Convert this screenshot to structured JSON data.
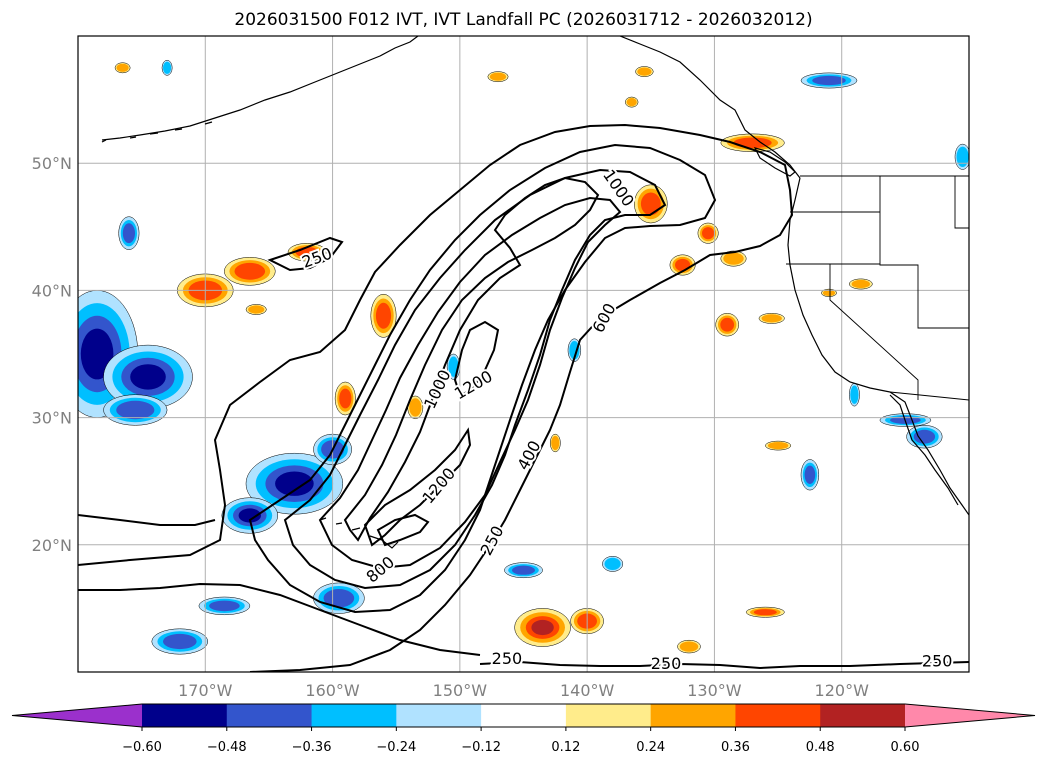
{
  "title": "2026031500 F012 IVT, IVT Landfall PC (2026031712 - 2026032012)",
  "map": {
    "projection": "equirectangular",
    "lon_range": [
      -180,
      -110
    ],
    "lat_range": [
      10,
      60
    ],
    "lat_ticks": [
      {
        "value": 20,
        "label": "20°N"
      },
      {
        "value": 30,
        "label": "30°N"
      },
      {
        "value": 40,
        "label": "40°N"
      },
      {
        "value": 50,
        "label": "50°N"
      }
    ],
    "lon_ticks": [
      {
        "value": -170,
        "label": "170°W"
      },
      {
        "value": -160,
        "label": "160°W"
      },
      {
        "value": -150,
        "label": "150°W"
      },
      {
        "value": -140,
        "label": "140°W"
      },
      {
        "value": -130,
        "label": "130°W"
      },
      {
        "value": -120,
        "label": "120°W"
      }
    ],
    "grid": true
  },
  "ivt_contours": {
    "levels": [
      250,
      400,
      600,
      800,
      1000,
      1200
    ],
    "labels": [
      {
        "text": "250",
        "lon": -161.2,
        "lat": 42.5,
        "angle": -20
      },
      {
        "text": "1000",
        "lon": -137.6,
        "lat": 48.0,
        "angle": 55
      },
      {
        "text": "600",
        "lon": -138.6,
        "lat": 37.8,
        "angle": -62
      },
      {
        "text": "1200",
        "lon": -148.9,
        "lat": 32.5,
        "angle": -30
      },
      {
        "text": "1000",
        "lon": -151.7,
        "lat": 32.2,
        "angle": -65
      },
      {
        "text": "400",
        "lon": -144.5,
        "lat": 27.0,
        "angle": -62
      },
      {
        "text": "1200",
        "lon": -151.6,
        "lat": 24.6,
        "angle": -50
      },
      {
        "text": "250",
        "lon": -147.4,
        "lat": 20.3,
        "angle": -62
      },
      {
        "text": "800",
        "lon": -156.2,
        "lat": 18.0,
        "angle": -40
      },
      {
        "text": "250",
        "lon": -146.3,
        "lat": 11.0,
        "angle": 0
      },
      {
        "text": "250",
        "lon": -133.8,
        "lat": 10.6,
        "angle": 0
      },
      {
        "text": "250",
        "lon": -112.5,
        "lat": 10.8,
        "angle": 0
      }
    ]
  },
  "pc_shading": {
    "negative_blobs": [
      {
        "lon": -178.5,
        "lat": 35.0,
        "rx": 3.2,
        "ry": 5.0
      },
      {
        "lon": -174.5,
        "lat": 33.2,
        "rx": 3.5,
        "ry": 2.5
      },
      {
        "lon": -175.5,
        "lat": 30.6,
        "rx": 2.5,
        "ry": 1.2
      },
      {
        "lon": -163.0,
        "lat": 24.8,
        "rx": 3.8,
        "ry": 2.4
      },
      {
        "lon": -166.5,
        "lat": 22.3,
        "rx": 2.2,
        "ry": 1.4
      },
      {
        "lon": -160.0,
        "lat": 27.5,
        "rx": 1.5,
        "ry": 1.2
      },
      {
        "lon": -168.5,
        "lat": 15.2,
        "rx": 2.0,
        "ry": 0.7
      },
      {
        "lon": -172.0,
        "lat": 12.4,
        "rx": 2.2,
        "ry": 1.0
      },
      {
        "lon": -159.5,
        "lat": 15.8,
        "rx": 2.0,
        "ry": 1.2
      },
      {
        "lon": -121.0,
        "lat": 56.5,
        "rx": 2.2,
        "ry": 0.6
      },
      {
        "lon": -176.0,
        "lat": 44.5,
        "rx": 0.8,
        "ry": 1.3
      },
      {
        "lon": -122.5,
        "lat": 25.5,
        "rx": 0.7,
        "ry": 1.2
      },
      {
        "lon": -113.5,
        "lat": 28.5,
        "rx": 1.4,
        "ry": 0.9
      },
      {
        "lon": -115.0,
        "lat": 29.8,
        "rx": 2.0,
        "ry": 0.5
      },
      {
        "lon": -150.5,
        "lat": 34.0,
        "rx": 0.5,
        "ry": 1.0
      },
      {
        "lon": -141.0,
        "lat": 35.3,
        "rx": 0.5,
        "ry": 0.9
      },
      {
        "lon": -145.0,
        "lat": 18.0,
        "rx": 1.5,
        "ry": 0.6
      },
      {
        "lon": -138.0,
        "lat": 18.5,
        "rx": 0.8,
        "ry": 0.6
      },
      {
        "lon": -110.5,
        "lat": 50.5,
        "rx": 0.6,
        "ry": 1.0
      },
      {
        "lon": -173.0,
        "lat": 57.5,
        "rx": 0.4,
        "ry": 0.6
      },
      {
        "lon": -119.0,
        "lat": 31.8,
        "rx": 0.4,
        "ry": 0.9
      }
    ],
    "positive_blobs": [
      {
        "lon": -170.0,
        "lat": 40.0,
        "rx": 2.2,
        "ry": 1.3
      },
      {
        "lon": -166.5,
        "lat": 41.5,
        "rx": 2.0,
        "ry": 1.1
      },
      {
        "lon": -162.0,
        "lat": 43.0,
        "rx": 1.5,
        "ry": 0.7
      },
      {
        "lon": -156.0,
        "lat": 38.0,
        "rx": 1.0,
        "ry": 1.7
      },
      {
        "lon": -159.0,
        "lat": 31.5,
        "rx": 0.8,
        "ry": 1.3
      },
      {
        "lon": -135.0,
        "lat": 46.8,
        "rx": 1.3,
        "ry": 1.5
      },
      {
        "lon": -132.5,
        "lat": 42.0,
        "rx": 1.0,
        "ry": 0.8
      },
      {
        "lon": -130.5,
        "lat": 44.5,
        "rx": 0.8,
        "ry": 0.8
      },
      {
        "lon": -128.5,
        "lat": 42.5,
        "rx": 1.0,
        "ry": 0.6
      },
      {
        "lon": -127.0,
        "lat": 51.6,
        "rx": 2.5,
        "ry": 0.7
      },
      {
        "lon": -143.5,
        "lat": 13.5,
        "rx": 2.2,
        "ry": 1.5
      },
      {
        "lon": -140.0,
        "lat": 14.0,
        "rx": 1.3,
        "ry": 1.0
      },
      {
        "lon": -129.0,
        "lat": 37.3,
        "rx": 0.9,
        "ry": 0.9
      },
      {
        "lon": -125.5,
        "lat": 37.8,
        "rx": 1.0,
        "ry": 0.4
      },
      {
        "lon": -126.0,
        "lat": 14.7,
        "rx": 1.5,
        "ry": 0.4
      },
      {
        "lon": -132.0,
        "lat": 12.0,
        "rx": 0.9,
        "ry": 0.5
      },
      {
        "lon": -153.5,
        "lat": 30.8,
        "rx": 0.6,
        "ry": 0.9
      },
      {
        "lon": -142.5,
        "lat": 28.0,
        "rx": 0.4,
        "ry": 0.7
      },
      {
        "lon": -118.5,
        "lat": 40.5,
        "rx": 0.9,
        "ry": 0.4
      },
      {
        "lon": -121.0,
        "lat": 39.8,
        "rx": 0.6,
        "ry": 0.3
      },
      {
        "lon": -147.0,
        "lat": 56.8,
        "rx": 0.8,
        "ry": 0.4
      },
      {
        "lon": -135.5,
        "lat": 57.2,
        "rx": 0.7,
        "ry": 0.4
      },
      {
        "lon": -125.0,
        "lat": 27.8,
        "rx": 1.0,
        "ry": 0.35
      },
      {
        "lon": -166.0,
        "lat": 38.5,
        "rx": 0.8,
        "ry": 0.4
      },
      {
        "lon": -176.5,
        "lat": 57.5,
        "rx": 0.6,
        "ry": 0.4
      },
      {
        "lon": -136.5,
        "lat": 54.8,
        "rx": 0.5,
        "ry": 0.4
      }
    ]
  },
  "colorbar": {
    "bins": [
      -0.72,
      -0.6,
      -0.48,
      -0.36,
      -0.24,
      -0.12,
      0.12,
      0.24,
      0.36,
      0.48,
      0.6,
      0.72
    ],
    "colors": [
      "#9b30cc",
      "#00008b",
      "#3355cc",
      "#00bfff",
      "#b0e2ff",
      "#ffffff",
      "#ffec8b",
      "#ffa500",
      "#ff4500",
      "#b22222",
      "#ff88aa"
    ],
    "tick_labels": [
      "−0.60",
      "−0.48",
      "−0.36",
      "−0.24",
      "−0.12",
      "0.12",
      "0.24",
      "0.36",
      "0.48",
      "0.60"
    ]
  }
}
